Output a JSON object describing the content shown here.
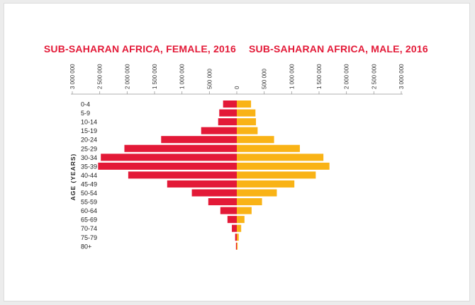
{
  "chart_data": {
    "type": "bar",
    "orientation": "horizontal-pyramid",
    "title_female": "SUB-SAHARAN AFRICA, FEMALE, 2016",
    "title_male": "SUB-SAHARAN AFRICA, MALE, 2016",
    "ylabel": "AGE (YEARS)",
    "xlim": [
      0,
      3000000
    ],
    "xticks": [
      0,
      500000,
      1000000,
      1500000,
      2000000,
      2500000,
      3000000
    ],
    "xtick_labels": [
      "0",
      "500 000",
      "1 000 000",
      "1 500 000",
      "2 000 000",
      "2 500 000",
      "3 000 000"
    ],
    "categories": [
      "0-4",
      "5-9",
      "10-14",
      "15-19",
      "20-24",
      "25-29",
      "30-34",
      "35-39",
      "40-44",
      "45-49",
      "50-54",
      "55-59",
      "60-64",
      "65-69",
      "70-74",
      "75-79",
      "80+"
    ],
    "series": [
      {
        "side": "left",
        "color": "#e31937",
        "values": [
          250000,
          320000,
          340000,
          650000,
          1380000,
          2050000,
          2480000,
          2530000,
          1980000,
          1270000,
          820000,
          520000,
          300000,
          170000,
          90000,
          30000,
          15000
        ]
      },
      {
        "side": "right",
        "color": "#f9b316",
        "values": [
          260000,
          340000,
          350000,
          380000,
          680000,
          1150000,
          1580000,
          1690000,
          1440000,
          1050000,
          730000,
          460000,
          270000,
          140000,
          80000,
          35000,
          15000
        ]
      }
    ],
    "grid": false
  }
}
